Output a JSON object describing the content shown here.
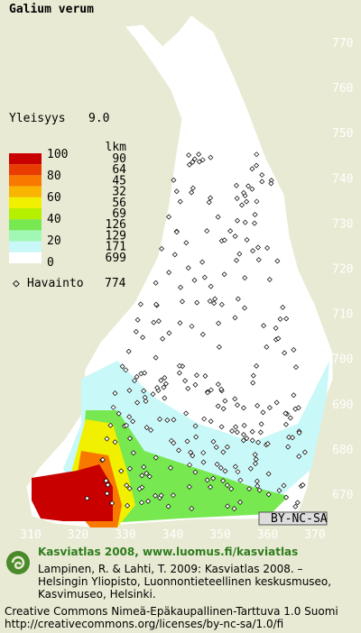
{
  "title": "Galium verum",
  "frequency": {
    "label": "Yleisyys",
    "value": "9.0"
  },
  "legend": {
    "percent_levels": [
      100,
      80,
      60,
      40,
      20,
      0
    ],
    "count_header": "lkm",
    "counts": [
      90,
      64,
      45,
      32,
      56,
      69,
      126,
      129,
      171,
      699
    ],
    "colors": [
      "#c80000",
      "#e83c00",
      "#f87800",
      "#f8b400",
      "#f0f000",
      "#b4f000",
      "#78e850",
      "#a0f8b4",
      "#c8f8f8",
      "#ffffff"
    ]
  },
  "observations": {
    "label": "Havainto",
    "value": "774"
  },
  "grid": {
    "northing": [
      770,
      760,
      750,
      740,
      730,
      720,
      710,
      700,
      690,
      680,
      670
    ],
    "easting": [
      310,
      320,
      330,
      340,
      350,
      360,
      370
    ]
  },
  "license_badge": "BY-NC-SA",
  "footer": {
    "heading": "Kasviatlas 2008, www.luomus.fi/kasviatlas",
    "citation": [
      "Lampinen, R. & Lahti, T. 2009: Kasviatlas 2008. –",
      "Helsingin Yliopisto, Luonnontieteellinen keskusmuseo,",
      "Kasvimuseo, Helsinki."
    ],
    "license": [
      "Creative Commons Nimeä-Epäkaupallinen-Tarttuva 1.0 Suomi",
      "http://creativecommons.org/licenses/by-nc-sa/1.0/fi"
    ]
  }
}
